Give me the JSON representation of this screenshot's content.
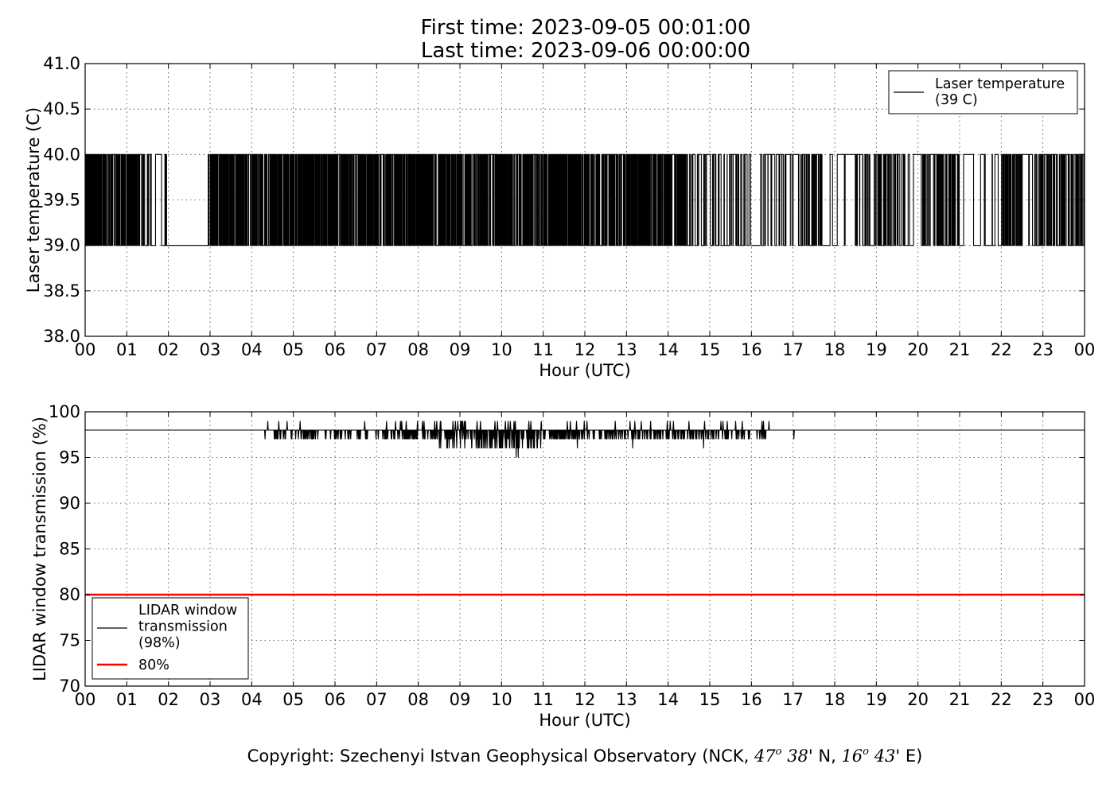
{
  "title": {
    "line1": "First time: 2023-09-05 00:01:00",
    "line2": "Last time: 2023-09-06 00:00:00"
  },
  "footer": {
    "prefix": "Copyright: Szechenyi Istvan Geophysical Observatory (NCK, ",
    "lat_deg": "47",
    "deg_sym": "o",
    "lat_min": "38",
    "lat_suffix": "' N, ",
    "lon_deg": "16",
    "lon_min": "43",
    "lon_suffix": "' E)"
  },
  "chart_data": [
    {
      "type": "line",
      "ylabel": "Laser temperature (C)",
      "xlabel": "Hour (UTC)",
      "xlim": [
        0,
        24
      ],
      "ylim": [
        38.0,
        41.0
      ],
      "x_ticks": [
        "00",
        "01",
        "02",
        "03",
        "04",
        "05",
        "06",
        "07",
        "08",
        "09",
        "10",
        "11",
        "12",
        "13",
        "14",
        "15",
        "16",
        "17",
        "18",
        "19",
        "20",
        "21",
        "22",
        "23",
        "00"
      ],
      "y_ticks": [
        "38.0",
        "38.5",
        "39.0",
        "39.5",
        "40.0",
        "40.5",
        "41.0"
      ],
      "grid": true,
      "legend_position": "upper-right",
      "series": [
        {
          "name": "Laser temperature\n(39 C)",
          "color": "#000000",
          "levels": [
            39.0,
            40.0
          ],
          "segments": [
            [
              0.0,
              0.3,
              40
            ],
            [
              0.3,
              1.3,
              60
            ],
            [
              1.3,
              1.4,
              2
            ],
            [
              1.4,
              1.6,
              5
            ],
            [
              1.6,
              1.85,
              1
            ],
            [
              1.85,
              2.0,
              2
            ],
            [
              2.0,
              2.95,
              0
            ],
            [
              2.95,
              3.0,
              2
            ],
            [
              3.0,
              14.4,
              700
            ],
            [
              14.4,
              17.2,
              40
            ],
            [
              17.2,
              17.7,
              15
            ],
            [
              17.7,
              18.5,
              3
            ],
            [
              18.5,
              19.7,
              30
            ],
            [
              19.7,
              20.1,
              2
            ],
            [
              20.1,
              21.0,
              30
            ],
            [
              21.0,
              21.75,
              3
            ],
            [
              21.75,
              22.0,
              2
            ],
            [
              22.0,
              22.5,
              25
            ],
            [
              22.5,
              22.8,
              2
            ],
            [
              22.8,
              24.0,
              45
            ]
          ]
        }
      ]
    },
    {
      "type": "line",
      "ylabel": "LIDAR window transmission (%)",
      "xlabel": "Hour (UTC)",
      "xlim": [
        0,
        24
      ],
      "ylim": [
        70,
        100
      ],
      "x_ticks": [
        "00",
        "01",
        "02",
        "03",
        "04",
        "05",
        "06",
        "07",
        "08",
        "09",
        "10",
        "11",
        "12",
        "13",
        "14",
        "15",
        "16",
        "17",
        "18",
        "19",
        "20",
        "21",
        "22",
        "23",
        "00"
      ],
      "y_ticks": [
        "70",
        "75",
        "80",
        "85",
        "90",
        "95",
        "100"
      ],
      "grid": true,
      "legend_position": "lower-left",
      "series": [
        {
          "name": "LIDAR window\ntransmission\n(98%)",
          "color": "#000000",
          "baseline": 98,
          "noisy_ranges": [
            [
              4.3,
              4.5,
              1
            ],
            [
              4.5,
              7.5,
              6
            ],
            [
              7.5,
              8.4,
              12
            ],
            [
              8.4,
              9.5,
              15
            ],
            [
              9.5,
              10.9,
              18
            ],
            [
              10.9,
              12.0,
              14
            ],
            [
              12.0,
              13.9,
              8
            ],
            [
              13.9,
              14.6,
              12
            ],
            [
              14.6,
              16.5,
              7
            ],
            [
              17.0,
              17.05,
              1
            ]
          ],
          "spikes": [
            [
              4.32,
              97
            ],
            [
              4.65,
              99
            ],
            [
              4.85,
              99
            ],
            [
              4.95,
              97
            ],
            [
              5.25,
              97
            ],
            [
              7.6,
              99
            ],
            [
              8.1,
              99
            ],
            [
              10.35,
              95
            ],
            [
              10.4,
              95
            ],
            [
              11.8,
              99
            ],
            [
              11.82,
              96
            ],
            [
              13.15,
              96
            ],
            [
              14.05,
              99
            ],
            [
              14.5,
              99
            ],
            [
              14.85,
              96
            ],
            [
              17.02,
              97
            ]
          ]
        },
        {
          "name": "80%",
          "color": "#ff0000",
          "values": [
            [
              0,
              80
            ],
            [
              24,
              80
            ]
          ]
        }
      ]
    }
  ]
}
